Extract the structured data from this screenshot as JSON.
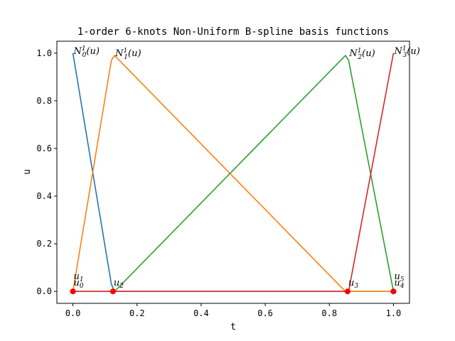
{
  "chart_data": {
    "type": "line",
    "title": "1-order 6-knots Non-Uniform B-spline basis functions",
    "xlabel": "t",
    "ylabel": "u",
    "xlim": [
      -0.05,
      1.05
    ],
    "ylim": [
      -0.05,
      1.05
    ],
    "grid": false,
    "xticks": [
      0.0,
      0.2,
      0.4,
      0.6,
      0.8,
      1.0
    ],
    "xtick_labels": [
      "0.0",
      "0.2",
      "0.4",
      "0.6",
      "0.8",
      "1.0"
    ],
    "yticks": [
      0.0,
      0.2,
      0.4,
      0.6,
      0.8,
      1.0
    ],
    "ytick_labels": [
      "0.0",
      "0.2",
      "0.4",
      "0.6",
      "0.8",
      "1.0"
    ],
    "series": [
      {
        "label_base": "N",
        "label_sub": "0",
        "label_sup": "1",
        "label_arg": "(u)",
        "color": "#1f77b4",
        "x": [
          0.0,
          0.12,
          0.13,
          1.0
        ],
        "y": [
          1.0,
          0.03,
          0.0,
          0.0
        ],
        "label_at": [
          0.0,
          1.0
        ]
      },
      {
        "label_base": "N",
        "label_sub": "1",
        "label_sup": "1",
        "label_arg": "(u)",
        "color": "#ff7f0e",
        "x": [
          0.0,
          0.12,
          0.13,
          0.85,
          1.0
        ],
        "y": [
          0.0,
          0.97,
          0.99,
          0.0,
          0.0
        ],
        "label_at": [
          0.13,
          0.99
        ]
      },
      {
        "label_base": "N",
        "label_sub": "2",
        "label_sup": "1",
        "label_arg": "(u)",
        "color": "#2ca02c",
        "x": [
          0.0,
          0.13,
          0.85,
          0.86,
          1.0
        ],
        "y": [
          0.0,
          0.0,
          0.99,
          0.97,
          0.0
        ],
        "label_at": [
          0.86,
          0.99
        ]
      },
      {
        "label_base": "N",
        "label_sub": "3",
        "label_sup": "1",
        "label_arg": "(u)",
        "color": "#d62728",
        "x": [
          0.0,
          0.86,
          1.0
        ],
        "y": [
          0.0,
          0.0,
          1.0
        ],
        "label_at": [
          1.0,
          1.0
        ]
      }
    ],
    "knots": {
      "color": "#ff0000",
      "x": [
        0.0,
        0.0,
        0.125,
        0.857,
        1.0,
        1.0
      ],
      "labels": [
        {
          "base": "u",
          "sub": "0",
          "x": 0.0,
          "dy": 0
        },
        {
          "base": "u",
          "sub": "1",
          "x": 0.0,
          "dy": -1
        },
        {
          "base": "u",
          "sub": "2",
          "x": 0.125,
          "dy": 0
        },
        {
          "base": "u",
          "sub": "3",
          "x": 0.857,
          "dy": 0
        },
        {
          "base": "u",
          "sub": "4",
          "x": 1.0,
          "dy": 0
        },
        {
          "base": "u",
          "sub": "5",
          "x": 1.0,
          "dy": -1
        }
      ]
    }
  }
}
